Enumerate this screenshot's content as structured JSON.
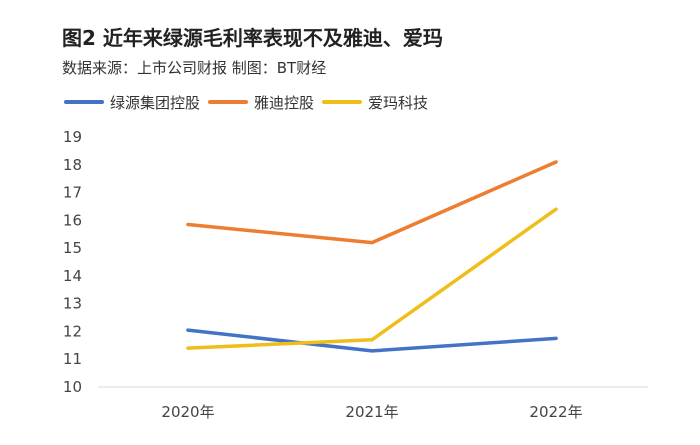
{
  "header": {
    "title": "图2 近年来绿源毛利率表现不及雅迪、爱玛",
    "source": "数据来源：上市公司财报   制图：BT财经"
  },
  "chart_data": {
    "type": "line",
    "title": "图2 近年来绿源毛利率表现不及雅迪、爱玛",
    "subtitle": "数据来源：上市公司财报   制图：BT财经",
    "x": [
      "2020年",
      "2021年",
      "2022年"
    ],
    "series": [
      {
        "name": "绿源集团控股",
        "color": "#4472C4",
        "values": [
          12.05,
          11.3,
          11.75
        ]
      },
      {
        "name": "雅迪控股",
        "color": "#ED7D31",
        "values": [
          15.85,
          15.2,
          18.1
        ]
      },
      {
        "name": "爱玛科技",
        "color": "#EFBE1B",
        "values": [
          11.4,
          11.7,
          16.4
        ]
      }
    ],
    "ylim": [
      10,
      19
    ],
    "yticks": [
      10,
      11,
      12,
      13,
      14,
      15,
      16,
      17,
      18,
      19
    ],
    "xlabel": "",
    "ylabel": "",
    "grid": false,
    "legend": "top-left"
  }
}
